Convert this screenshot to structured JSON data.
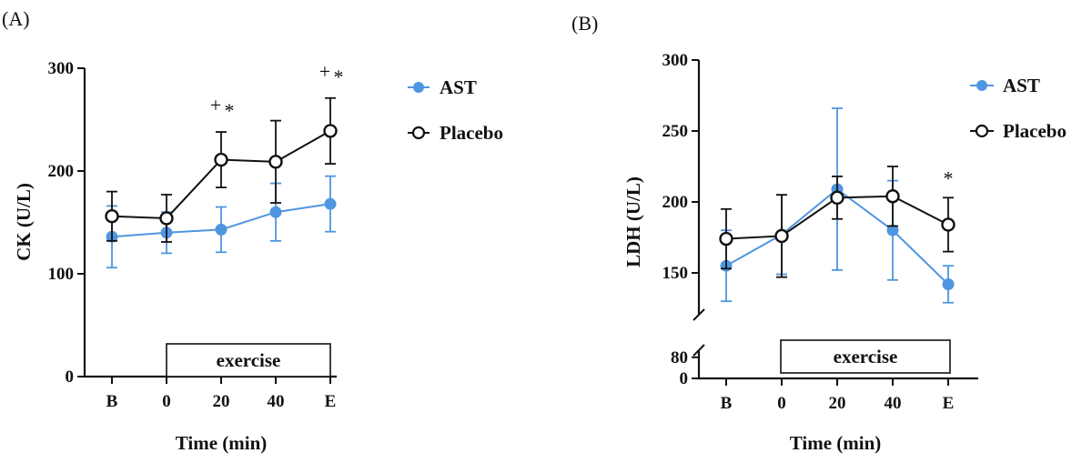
{
  "colors": {
    "ast": "#4f96e0",
    "placebo": "#111111"
  },
  "chart_data": [
    {
      "type": "line",
      "panel_label": "(A)",
      "categories": [
        "B",
        "0",
        "20",
        "40",
        "E"
      ],
      "ylabel": "CK (U/L)",
      "xlabel": "Time (min)",
      "ylim": [
        0,
        300
      ],
      "yticks": [
        "0",
        "100",
        "200",
        "300"
      ],
      "legend_position": "top-right",
      "box_label": "exercise",
      "series": [
        {
          "name": "AST",
          "values": [
            136,
            140,
            143,
            160,
            168
          ],
          "err_up": [
            30,
            20,
            22,
            28,
            27
          ],
          "err_down": [
            30,
            20,
            22,
            28,
            27
          ]
        },
        {
          "name": "Placebo",
          "values": [
            156,
            154,
            211,
            209,
            239
          ],
          "err_up": [
            24,
            23,
            27,
            40,
            32
          ],
          "err_down": [
            24,
            23,
            27,
            40,
            32
          ]
        }
      ],
      "annotations": [
        {
          "category": "20",
          "text_plus": "+",
          "text_star": "*"
        },
        {
          "category": "E",
          "text_plus": "+",
          "text_star": "*"
        }
      ]
    },
    {
      "type": "line",
      "panel_label": "(B)",
      "categories": [
        "B",
        "0",
        "20",
        "40",
        "E"
      ],
      "ylabel": "LDH (U/L)",
      "xlabel": "Time (min)",
      "ylim": [
        0,
        300
      ],
      "yticks": [
        "0",
        "80",
        "150",
        "200",
        "250",
        "300"
      ],
      "axis_break": true,
      "legend_position": "top-right",
      "box_label": "exercise",
      "series": [
        {
          "name": "AST",
          "values": [
            155,
            177,
            209,
            180,
            142
          ],
          "err_up": [
            25,
            28,
            57,
            35,
            13
          ],
          "err_down": [
            25,
            28,
            57,
            35,
            13
          ]
        },
        {
          "name": "Placebo",
          "values": [
            174,
            176,
            203,
            204,
            184
          ],
          "err_up": [
            21,
            29,
            15,
            21,
            19
          ],
          "err_down": [
            21,
            29,
            15,
            21,
            19
          ]
        }
      ],
      "annotations": [
        {
          "category": "E",
          "text_star": "*"
        }
      ]
    }
  ]
}
